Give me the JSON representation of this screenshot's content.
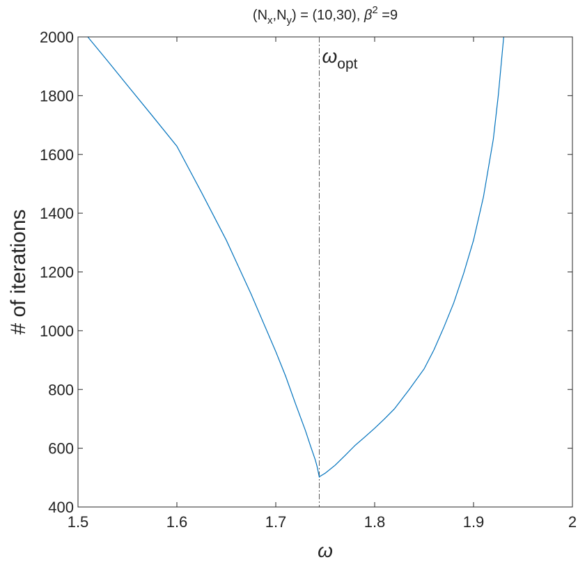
{
  "chart_data": {
    "type": "line",
    "title": [
      {
        "text": "(N"
      },
      {
        "text": "x",
        "baseline": "sub"
      },
      {
        "text": ",N"
      },
      {
        "text": "y",
        "baseline": "sub"
      },
      {
        "text": ") = (10,30),  "
      },
      {
        "text": "β",
        "italic": true
      },
      {
        "text": "2",
        "baseline": "super"
      },
      {
        "text": " =9"
      }
    ],
    "x_label": "ω",
    "y_label": "# of iterations",
    "annotation": [
      {
        "text": "ω",
        "italic": true
      },
      {
        "text": "opt",
        "baseline": "sub"
      }
    ],
    "vline": 1.744,
    "x": [
      1.5099,
      1.53,
      1.55,
      1.575,
      1.6,
      1.625,
      1.65,
      1.675,
      1.7,
      1.71,
      1.72,
      1.73,
      1.735,
      1.74,
      1.742,
      1.744,
      1.745,
      1.75,
      1.76,
      1.77,
      1.78,
      1.79,
      1.8,
      1.81,
      1.82,
      1.835,
      1.85,
      1.86,
      1.87,
      1.88,
      1.89,
      1.9,
      1.91,
      1.92,
      1.925,
      1.9305
    ],
    "series": [
      {
        "name": "iterations",
        "color": "#0072bd",
        "values": [
          2000,
          1918,
          1835,
          1732,
          1628,
          1470,
          1308,
          1125,
          929,
          845,
          751,
          660,
          609,
          560,
          535,
          502,
          505,
          515,
          542,
          575,
          609,
          638,
          668,
          700,
          734,
          800,
          870,
          935,
          1012,
          1095,
          1195,
          1308,
          1455,
          1652,
          1800,
          2000
        ]
      }
    ],
    "xlim": [
      1.5,
      2
    ],
    "ylim": [
      400,
      2000
    ],
    "xticks": [
      1.5,
      1.6,
      1.7,
      1.8,
      1.9,
      2
    ],
    "yticks": [
      400,
      600,
      800,
      1000,
      1200,
      1400,
      1600,
      1800,
      2000
    ],
    "grid": false
  }
}
